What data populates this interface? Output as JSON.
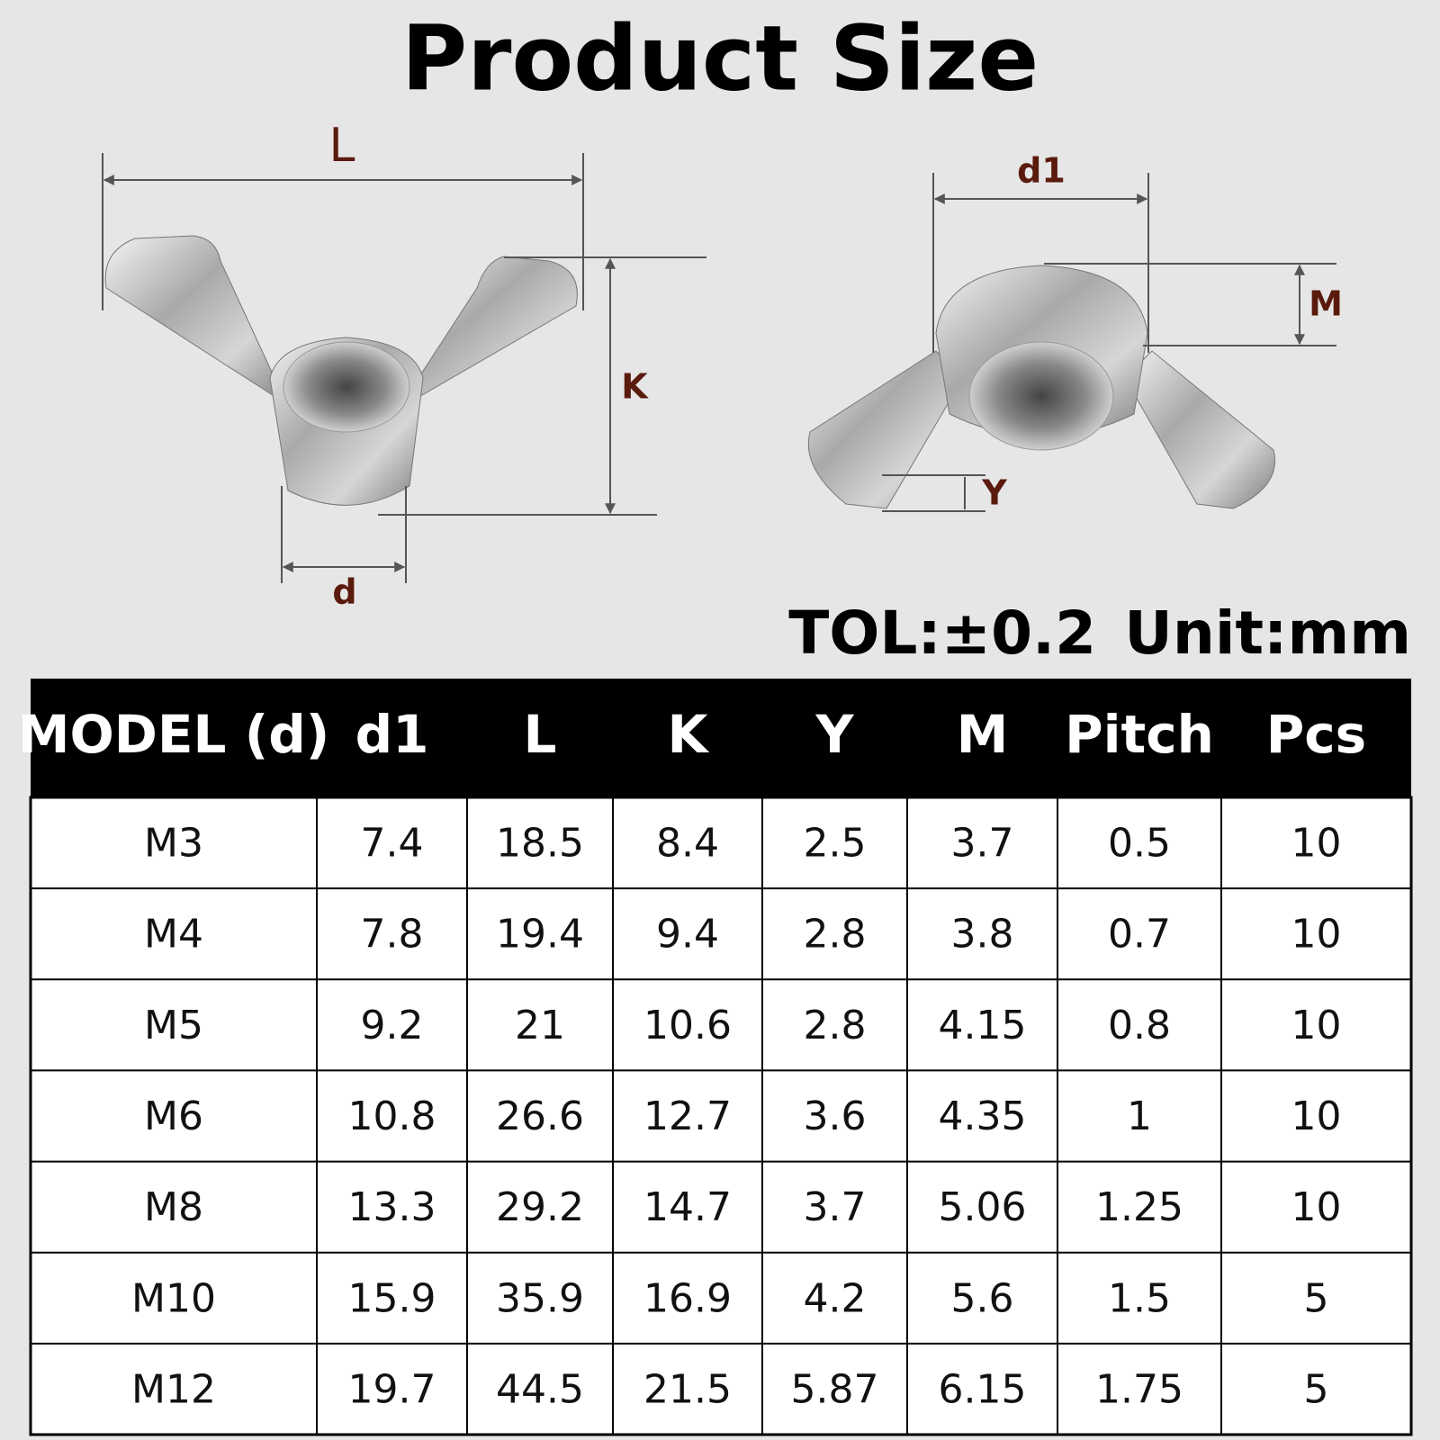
{
  "header": {
    "title": "Product Size"
  },
  "diagram": {
    "labels": {
      "L": "L",
      "K": "K",
      "d": "d",
      "d1": "d1",
      "M": "M",
      "Y": "Y"
    },
    "tolerance": "TOL:±0.2",
    "unit": "Unit:mm"
  },
  "table": {
    "header": [
      "MODEL (d)",
      "d1",
      "L",
      "K",
      "Y",
      "M",
      "Pitch",
      "Pcs"
    ],
    "rows": [
      [
        "M3",
        7.4,
        18.5,
        8.4,
        2.5,
        3.7,
        0.5,
        10
      ],
      [
        "M4",
        7.8,
        19.4,
        9.4,
        2.8,
        3.8,
        0.7,
        10
      ],
      [
        "M5",
        9.2,
        21,
        10.6,
        2.8,
        4.15,
        0.8,
        10
      ],
      [
        "M6",
        10.8,
        26.6,
        12.7,
        3.6,
        4.35,
        1,
        10
      ],
      [
        "M8",
        13.3,
        29.2,
        14.7,
        3.7,
        5.06,
        1.25,
        10
      ],
      [
        "M10",
        15.9,
        35.9,
        16.9,
        4.2,
        5.6,
        1.5,
        5
      ],
      [
        "M12",
        19.7,
        44.5,
        21.5,
        5.87,
        6.15,
        1.75,
        5
      ]
    ]
  }
}
